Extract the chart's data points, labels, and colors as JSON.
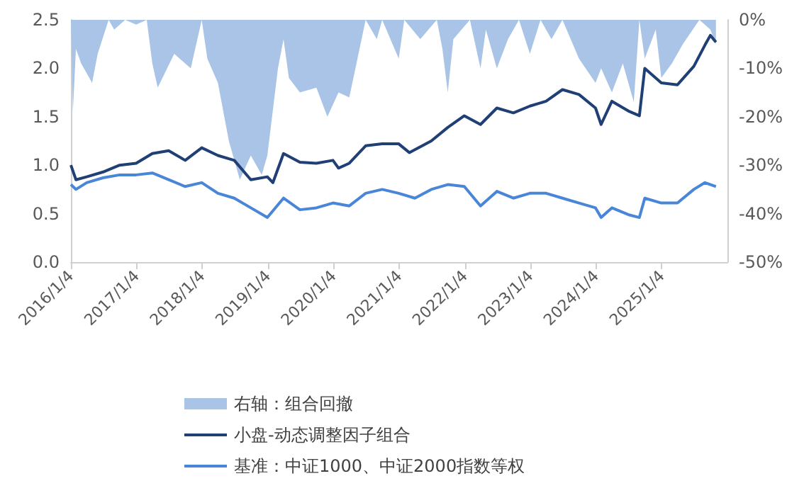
{
  "chart_data": {
    "type": "line",
    "xlim": [
      "2016-01-04",
      "2026-01-04"
    ],
    "xticks": [
      {
        "value": "2016-01-04",
        "label": "2016/1/4"
      },
      {
        "value": "2017-01-04",
        "label": "2017/1/4"
      },
      {
        "value": "2018-01-04",
        "label": "2018/1/4"
      },
      {
        "value": "2019-01-04",
        "label": "2019/1/4"
      },
      {
        "value": "2020-01-04",
        "label": "2020/1/4"
      },
      {
        "value": "2021-01-04",
        "label": "2021/1/4"
      },
      {
        "value": "2022-01-04",
        "label": "2022/1/4"
      },
      {
        "value": "2023-01-04",
        "label": "2023/1/4"
      },
      {
        "value": "2024-01-04",
        "label": "2024/1/4"
      },
      {
        "value": "2025-01-04",
        "label": "2025/1/4"
      }
    ],
    "ylim": [
      0,
      2.5
    ],
    "yticks": [
      {
        "value": 0,
        "label": "0.0"
      },
      {
        "value": 0.5,
        "label": "0.5"
      },
      {
        "value": 1,
        "label": "1.0"
      },
      {
        "value": 1.5,
        "label": "1.5"
      },
      {
        "value": 2,
        "label": "2.0"
      },
      {
        "value": 2.5,
        "label": "2.5"
      }
    ],
    "y2lim": [
      -50,
      0
    ],
    "y2ticks": [
      {
        "value": 0,
        "label": "0%"
      },
      {
        "value": -10,
        "label": "-10%"
      },
      {
        "value": -20,
        "label": "-20%"
      },
      {
        "value": -30,
        "label": "-30%"
      },
      {
        "value": -40,
        "label": "-40%"
      },
      {
        "value": -50,
        "label": "-50%"
      }
    ],
    "grid": false,
    "legend": "bottom",
    "marker": "none",
    "series": [
      {
        "name": "右轴：组合回撤",
        "type": "area",
        "axis": "y2",
        "color": "#a9c4e6",
        "x": [
          "2016-01-04",
          "2016-01-15",
          "2016-02",
          "2016-03",
          "2016-05",
          "2016-06",
          "2016-08",
          "2016-09",
          "2016-11",
          "2017-01",
          "2017-03",
          "2017-04",
          "2017-05",
          "2017-08",
          "2017-11",
          "2018-01",
          "2018-02",
          "2018-04",
          "2018-06",
          "2018-08",
          "2018-10",
          "2018-12",
          "2019-01",
          "2019-03",
          "2019-04",
          "2019-05",
          "2019-07",
          "2019-10",
          "2019-12",
          "2020-02",
          "2020-04",
          "2020-07",
          "2020-09",
          "2020-10",
          "2021-01",
          "2021-02",
          "2021-05",
          "2021-08",
          "2021-09",
          "2021-10",
          "2021-11",
          "2022-02",
          "2022-04",
          "2022-05",
          "2022-07",
          "2022-09",
          "2022-11",
          "2023-01",
          "2023-03",
          "2023-05",
          "2023-07",
          "2023-10",
          "2024-01",
          "2024-02",
          "2024-04",
          "2024-06",
          "2024-08",
          "2024-09",
          "2024-10",
          "2024-12",
          "2025-01",
          "2025-03",
          "2025-05",
          "2025-08",
          "2025-10",
          "2025-11"
        ],
        "values": [
          0,
          -19,
          -6,
          -9,
          -13,
          -7,
          0,
          -2,
          0,
          -1,
          0,
          -9,
          -14,
          -7,
          -10,
          0,
          -8,
          -13,
          -25,
          -33,
          -28,
          -32,
          -28,
          -10,
          -4,
          -12,
          -15,
          -14,
          -20,
          -15,
          -16,
          0,
          -4,
          0,
          -8,
          0,
          -4,
          0,
          -6,
          -15,
          -4,
          0,
          -10,
          -2,
          -10,
          -4,
          0,
          -7,
          0,
          -4,
          0,
          -8,
          -13,
          -10,
          -15,
          -9,
          -17,
          0,
          -8,
          -2,
          -12,
          -9,
          -5,
          0,
          -2,
          -5
        ]
      },
      {
        "name": "小盘-动态调整因子组合",
        "color": "#1f3f75",
        "x": [
          "2016-01-04",
          "2016-02",
          "2016-04",
          "2016-07",
          "2016-10",
          "2017-01",
          "2017-04",
          "2017-07",
          "2017-10",
          "2018-01",
          "2018-04",
          "2018-07",
          "2018-10",
          "2019-01",
          "2019-02",
          "2019-04",
          "2019-07",
          "2019-10",
          "2020-01",
          "2020-02",
          "2020-04",
          "2020-07",
          "2020-10",
          "2021-01",
          "2021-03",
          "2021-07",
          "2021-10",
          "2022-01",
          "2022-04",
          "2022-07",
          "2022-10",
          "2023-01",
          "2023-04",
          "2023-07",
          "2023-10",
          "2024-01",
          "2024-02",
          "2024-04",
          "2024-07",
          "2024-09",
          "2024-10",
          "2025-01",
          "2025-04",
          "2025-07",
          "2025-09",
          "2025-10",
          "2025-11"
        ],
        "values": [
          1.0,
          0.85,
          0.88,
          0.93,
          1.0,
          1.02,
          1.12,
          1.15,
          1.05,
          1.18,
          1.1,
          1.05,
          0.85,
          0.88,
          0.82,
          1.12,
          1.03,
          1.02,
          1.05,
          0.97,
          1.02,
          1.2,
          1.22,
          1.22,
          1.13,
          1.25,
          1.39,
          1.51,
          1.42,
          1.59,
          1.54,
          1.61,
          1.66,
          1.78,
          1.73,
          1.59,
          1.42,
          1.66,
          1.56,
          1.51,
          2.0,
          1.85,
          1.83,
          2.02,
          2.24,
          2.34,
          2.27
        ]
      },
      {
        "name": "基准：中证1000、中证2000指数等权",
        "color": "#4a86d8",
        "x": [
          "2016-01-04",
          "2016-02",
          "2016-04",
          "2016-07",
          "2016-10",
          "2017-01",
          "2017-04",
          "2017-07",
          "2017-10",
          "2018-01",
          "2018-04",
          "2018-07",
          "2018-10",
          "2019-01",
          "2019-04",
          "2019-07",
          "2019-10",
          "2020-01",
          "2020-04",
          "2020-07",
          "2020-10",
          "2021-01",
          "2021-04",
          "2021-07",
          "2021-10",
          "2022-01",
          "2022-04",
          "2022-07",
          "2022-10",
          "2023-01",
          "2023-04",
          "2023-07",
          "2023-10",
          "2024-01",
          "2024-02",
          "2024-04",
          "2024-07",
          "2024-09",
          "2024-10",
          "2025-01",
          "2025-04",
          "2025-07",
          "2025-09",
          "2025-11"
        ],
        "values": [
          0.8,
          0.75,
          0.82,
          0.87,
          0.9,
          0.9,
          0.92,
          0.85,
          0.78,
          0.82,
          0.71,
          0.66,
          0.56,
          0.46,
          0.66,
          0.54,
          0.56,
          0.61,
          0.58,
          0.71,
          0.75,
          0.71,
          0.66,
          0.75,
          0.8,
          0.78,
          0.58,
          0.73,
          0.66,
          0.71,
          0.71,
          0.66,
          0.61,
          0.56,
          0.46,
          0.56,
          0.49,
          0.46,
          0.66,
          0.61,
          0.61,
          0.75,
          0.82,
          0.78
        ]
      }
    ]
  }
}
